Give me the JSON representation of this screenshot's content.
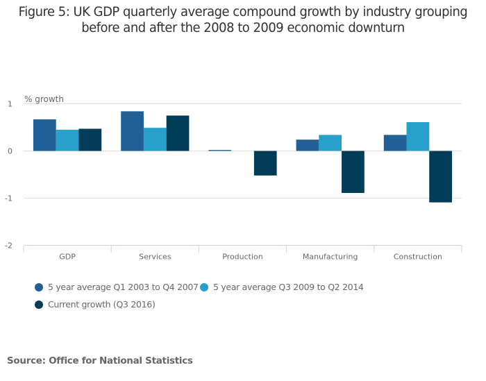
{
  "title_lines": [
    "Figure 5: UK GDP quarterly average compound growth by industry grouping",
    "before and after the 2008 to 2009 economic downturn"
  ],
  "source": "Source: Office for National Statistics",
  "chart_data": {
    "type": "bar",
    "title": "Figure 5: UK GDP quarterly average compound growth by industry grouping before and after the 2008 to 2009 economic downturn",
    "xlabel": "",
    "ylabel": "% growth",
    "ylim": [
      -2,
      1
    ],
    "yticks": [
      1,
      0,
      -1,
      -2
    ],
    "grid": true,
    "legend_position": "bottom-left",
    "categories": [
      "GDP",
      "Services",
      "Production",
      "Manufacturing",
      "Construction"
    ],
    "series": [
      {
        "name": "5 year average Q1 2003 to Q4 2007",
        "color": "#206095",
        "values": [
          0.67,
          0.84,
          0.02,
          0.24,
          0.34
        ]
      },
      {
        "name": "5 year average Q3 2009 to Q2 2014",
        "color": "#27A0CC",
        "values": [
          0.45,
          0.49,
          0.0,
          0.34,
          0.61
        ]
      },
      {
        "name": "Current growth (Q3 2016)",
        "color": "#003C57",
        "values": [
          0.47,
          0.75,
          -0.52,
          -0.89,
          -1.09
        ]
      }
    ]
  }
}
